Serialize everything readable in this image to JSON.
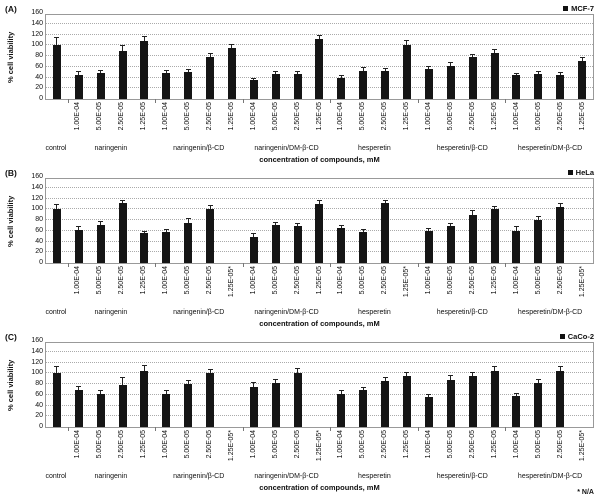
{
  "figure": {
    "xlabel": "concentration of compounds, mM",
    "ylabel": "% cell viability",
    "na_note": "* N/A",
    "bar_color": "#151515",
    "background": "#ffffff"
  },
  "chart_data": {
    "type": "bar",
    "ylim": [
      0,
      160
    ],
    "yticks": [
      0,
      20,
      40,
      60,
      80,
      100,
      120,
      140,
      160
    ],
    "xlabel": "concentration of compounds, mM",
    "ylabel": "% cell viability",
    "grid": "horizontal-dotted",
    "legend_position": "top-right",
    "panels": [
      {
        "panel_label": "(A)",
        "legend": "MCF-7",
        "groups": [
          {
            "label": "control",
            "bars": [
              {
                "conc": "",
                "value": 100,
                "err": 15
              }
            ]
          },
          {
            "label": "naringenin",
            "bars": [
              {
                "conc": "1.00E-04",
                "value": 45,
                "err": 8
              },
              {
                "conc": "5.00E-05",
                "value": 48,
                "err": 6
              },
              {
                "conc": "2.50E-05",
                "value": 90,
                "err": 10
              },
              {
                "conc": "1.25E-05",
                "value": 108,
                "err": 10
              }
            ]
          },
          {
            "label": "naringenin/β-CD",
            "bars": [
              {
                "conc": "1.00E-04",
                "value": 48,
                "err": 6
              },
              {
                "conc": "5.00E-05",
                "value": 50,
                "err": 5
              },
              {
                "conc": "2.50E-05",
                "value": 78,
                "err": 8
              },
              {
                "conc": "1.25E-05",
                "value": 95,
                "err": 8
              }
            ]
          },
          {
            "label": "naringenin/DM-β-CD",
            "bars": [
              {
                "conc": "1.00E-04",
                "value": 35,
                "err": 5
              },
              {
                "conc": "5.00E-05",
                "value": 47,
                "err": 6
              },
              {
                "conc": "2.50E-05",
                "value": 47,
                "err": 5
              },
              {
                "conc": "1.25E-05",
                "value": 112,
                "err": 8
              }
            ]
          },
          {
            "label": "hesperetin",
            "bars": [
              {
                "conc": "1.00E-04",
                "value": 40,
                "err": 5
              },
              {
                "conc": "5.00E-05",
                "value": 52,
                "err": 8
              },
              {
                "conc": "2.50E-05",
                "value": 52,
                "err": 6
              },
              {
                "conc": "1.25E-05",
                "value": 100,
                "err": 10
              }
            ]
          },
          {
            "label": "hesperetin/β-CD",
            "bars": [
              {
                "conc": "1.00E-04",
                "value": 55,
                "err": 6
              },
              {
                "conc": "5.00E-05",
                "value": 62,
                "err": 6
              },
              {
                "conc": "2.50E-05",
                "value": 78,
                "err": 6
              },
              {
                "conc": "1.25E-05",
                "value": 85,
                "err": 8
              }
            ]
          },
          {
            "label": "hesperetin/DM-β-CD",
            "bars": [
              {
                "conc": "1.00E-04",
                "value": 44,
                "err": 5
              },
              {
                "conc": "5.00E-05",
                "value": 47,
                "err": 5
              },
              {
                "conc": "2.50E-05",
                "value": 44,
                "err": 6
              },
              {
                "conc": "1.25E-05",
                "value": 70,
                "err": 8
              }
            ]
          }
        ]
      },
      {
        "panel_label": "(B)",
        "legend": "HeLa",
        "groups": [
          {
            "label": "control",
            "bars": [
              {
                "conc": "",
                "value": 100,
                "err": 10
              }
            ]
          },
          {
            "label": "naringenin",
            "bars": [
              {
                "conc": "1.00E-04",
                "value": 62,
                "err": 6
              },
              {
                "conc": "5.00E-05",
                "value": 70,
                "err": 8
              },
              {
                "conc": "2.50E-05",
                "value": 112,
                "err": 6
              },
              {
                "conc": "1.25E-05",
                "value": 55,
                "err": 5
              }
            ]
          },
          {
            "label": "naringenin/β-CD",
            "bars": [
              {
                "conc": "1.00E-04",
                "value": 58,
                "err": 6
              },
              {
                "conc": "5.00E-05",
                "value": 75,
                "err": 8
              },
              {
                "conc": "2.50E-05",
                "value": 100,
                "err": 8
              },
              {
                "conc": "1.25E-05*",
                "value": null,
                "err": null
              }
            ]
          },
          {
            "label": "naringenin/DM-β-CD",
            "bars": [
              {
                "conc": "1.00E-04",
                "value": 48,
                "err": 8
              },
              {
                "conc": "5.00E-05",
                "value": 70,
                "err": 6
              },
              {
                "conc": "2.50E-05",
                "value": 68,
                "err": 6
              },
              {
                "conc": "1.25E-05",
                "value": 110,
                "err": 8
              }
            ]
          },
          {
            "label": "hesperetin",
            "bars": [
              {
                "conc": "1.00E-04",
                "value": 65,
                "err": 6
              },
              {
                "conc": "5.00E-05",
                "value": 58,
                "err": 6
              },
              {
                "conc": "2.50E-05",
                "value": 112,
                "err": 6
              },
              {
                "conc": "1.25E-05*",
                "value": null,
                "err": null
              }
            ]
          },
          {
            "label": "hesperetin/β-CD",
            "bars": [
              {
                "conc": "1.00E-04",
                "value": 60,
                "err": 6
              },
              {
                "conc": "5.00E-05",
                "value": 68,
                "err": 6
              },
              {
                "conc": "2.50E-05",
                "value": 90,
                "err": 8
              },
              {
                "conc": "1.25E-05",
                "value": 100,
                "err": 6
              }
            ]
          },
          {
            "label": "hesperetin/DM-β-CD",
            "bars": [
              {
                "conc": "1.00E-04",
                "value": 60,
                "err": 8
              },
              {
                "conc": "5.00E-05",
                "value": 80,
                "err": 8
              },
              {
                "conc": "2.50E-05",
                "value": 105,
                "err": 6
              },
              {
                "conc": "1.25E-05*",
                "value": null,
                "err": null
              }
            ]
          }
        ]
      },
      {
        "panel_label": "(C)",
        "legend": "CaCo-2",
        "groups": [
          {
            "label": "control",
            "bars": [
              {
                "conc": "",
                "value": 100,
                "err": 13
              }
            ]
          },
          {
            "label": "naringenin",
            "bars": [
              {
                "conc": "1.00E-04",
                "value": 68,
                "err": 8
              },
              {
                "conc": "5.00E-05",
                "value": 62,
                "err": 6
              },
              {
                "conc": "2.50E-05",
                "value": 78,
                "err": 15
              },
              {
                "conc": "1.25E-05",
                "value": 105,
                "err": 10
              }
            ]
          },
          {
            "label": "naringenin/β-CD",
            "bars": [
              {
                "conc": "1.00E-04",
                "value": 62,
                "err": 6
              },
              {
                "conc": "5.00E-05",
                "value": 80,
                "err": 8
              },
              {
                "conc": "2.50E-05",
                "value": 100,
                "err": 8
              },
              {
                "conc": "1.25E-05*",
                "value": null,
                "err": null
              }
            ]
          },
          {
            "label": "naringenin/DM-β-CD",
            "bars": [
              {
                "conc": "1.00E-04",
                "value": 75,
                "err": 8
              },
              {
                "conc": "5.00E-05",
                "value": 82,
                "err": 8
              },
              {
                "conc": "2.50E-05",
                "value": 100,
                "err": 10
              },
              {
                "conc": "1.25E-05*",
                "value": null,
                "err": null
              }
            ]
          },
          {
            "label": "hesperetin",
            "bars": [
              {
                "conc": "1.00E-04",
                "value": 62,
                "err": 6
              },
              {
                "conc": "5.00E-05",
                "value": 68,
                "err": 6
              },
              {
                "conc": "2.50E-05",
                "value": 85,
                "err": 8
              },
              {
                "conc": "1.25E-05",
                "value": 95,
                "err": 8
              }
            ]
          },
          {
            "label": "hesperetin/β-CD",
            "bars": [
              {
                "conc": "1.00E-04",
                "value": 55,
                "err": 6
              },
              {
                "conc": "5.00E-05",
                "value": 88,
                "err": 8
              },
              {
                "conc": "2.50E-05",
                "value": 95,
                "err": 8
              },
              {
                "conc": "1.25E-05",
                "value": 105,
                "err": 8
              }
            ]
          },
          {
            "label": "hesperetin/DM-β-CD",
            "bars": [
              {
                "conc": "1.00E-04",
                "value": 58,
                "err": 6
              },
              {
                "conc": "5.00E-05",
                "value": 82,
                "err": 8
              },
              {
                "conc": "2.50E-05",
                "value": 105,
                "err": 8
              },
              {
                "conc": "1.25E-05*",
                "value": null,
                "err": null
              }
            ]
          }
        ]
      }
    ]
  }
}
